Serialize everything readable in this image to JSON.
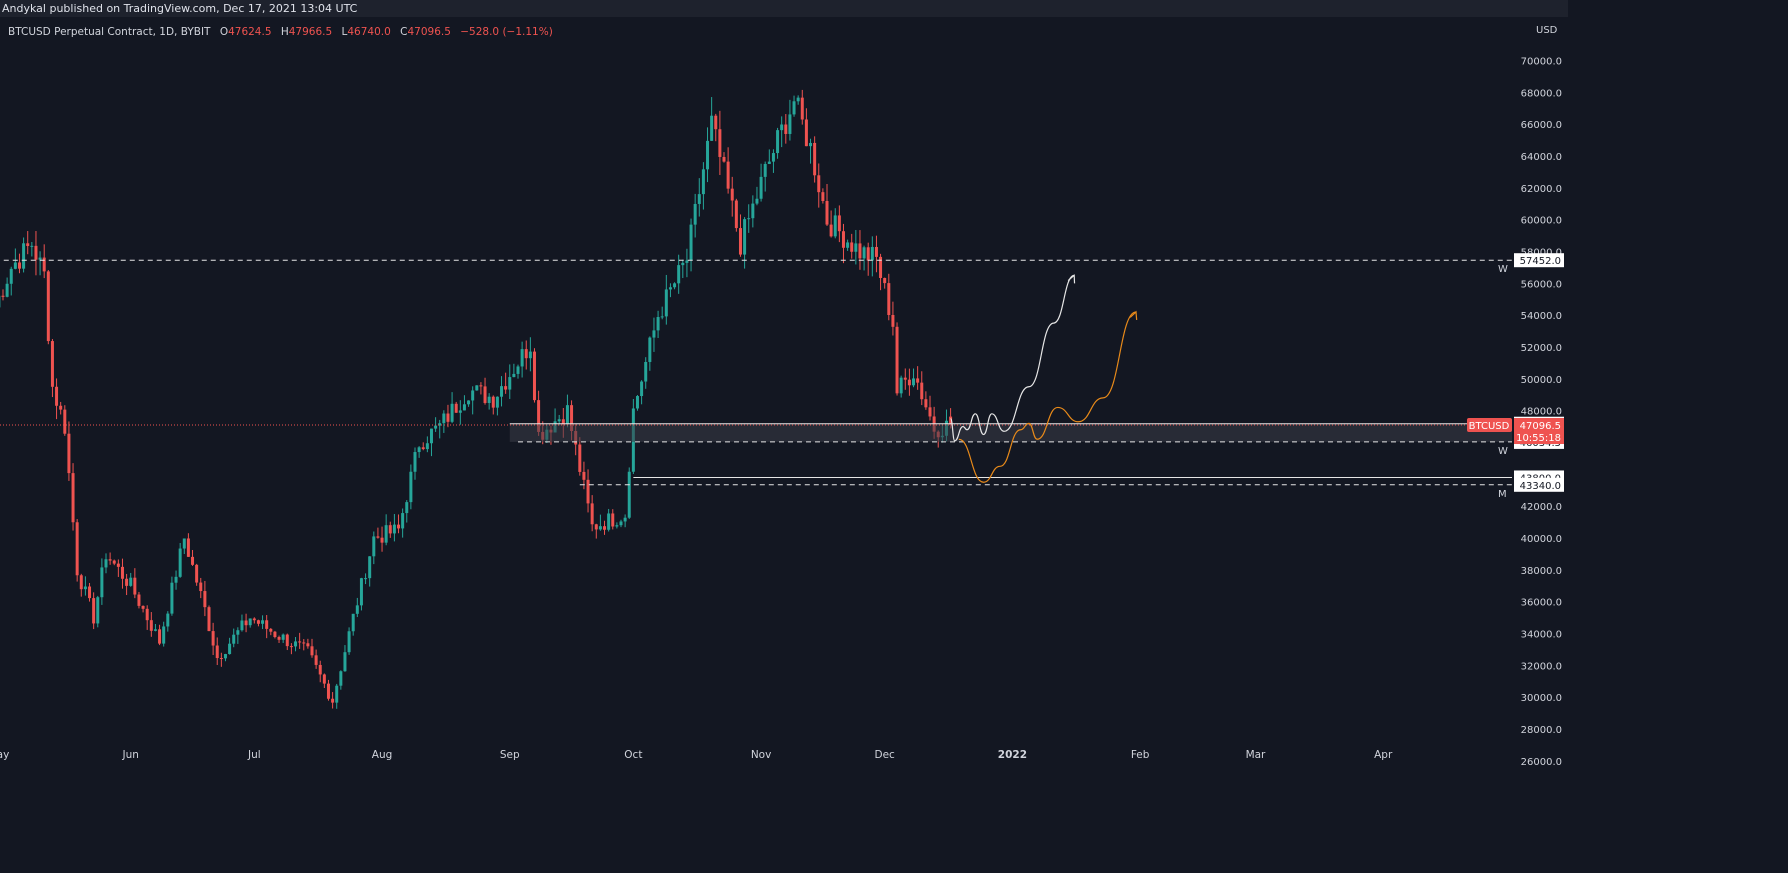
{
  "publisher_bar": "Andykal published on TradingView.com, Dec 17, 2021 13:04 UTC",
  "legend": {
    "symbol": "BTCUSD Perpetual Contract, 1D, BYBIT",
    "open_label": "O",
    "open": "47624.5",
    "high_label": "H",
    "high": "47966.5",
    "low_label": "L",
    "low": "46740.0",
    "close_label": "C",
    "close": "47096.5",
    "change": "−528.0 (−1.11%)"
  },
  "colors": {
    "background": "#131722",
    "up": "#26a69a",
    "down": "#ef5350",
    "grid_text": "#d1d4dc",
    "projection_white": "#e6e6e6",
    "projection_orange": "#e88a1a"
  },
  "chart_data": {
    "type": "candlestick",
    "title": "BTCUSD Perpetual Contract, 1D, BYBIT",
    "currency": "USD",
    "ylim": [
      26000,
      70000
    ],
    "y_ticks": [
      "26000.0",
      "28000.0",
      "30000.0",
      "32000.0",
      "34000.0",
      "36000.0",
      "38000.0",
      "40000.0",
      "42000.0",
      "44000.0",
      "46000.0",
      "48000.0",
      "50000.0",
      "52000.0",
      "54000.0",
      "56000.0",
      "58000.0",
      "60000.0",
      "62000.0",
      "64000.0",
      "66000.0",
      "68000.0",
      "70000.0"
    ],
    "x_ticks": [
      {
        "label": "ay",
        "date": "2021-05-01"
      },
      {
        "label": "Jun",
        "date": "2021-06-01"
      },
      {
        "label": "Jul",
        "date": "2021-07-01"
      },
      {
        "label": "Aug",
        "date": "2021-08-01"
      },
      {
        "label": "Sep",
        "date": "2021-09-01"
      },
      {
        "label": "Oct",
        "date": "2021-10-01"
      },
      {
        "label": "Nov",
        "date": "2021-11-01"
      },
      {
        "label": "Dec",
        "date": "2021-12-01"
      },
      {
        "label": "2022",
        "date": "2022-01-01"
      },
      {
        "label": "Feb",
        "date": "2022-02-01"
      },
      {
        "label": "Mar",
        "date": "2022-03-01"
      },
      {
        "label": "Apr",
        "date": "2022-04-01"
      }
    ],
    "anchors": [
      {
        "date": "2021-04-29",
        "close": 54500
      },
      {
        "date": "2021-05-03",
        "close": 57000
      },
      {
        "date": "2021-05-08",
        "close": 58500
      },
      {
        "date": "2021-05-11",
        "close": 56500
      },
      {
        "date": "2021-05-13",
        "close": 49500
      },
      {
        "date": "2021-05-16",
        "close": 47000
      },
      {
        "date": "2021-05-19",
        "close": 38000
      },
      {
        "date": "2021-05-23",
        "close": 35000
      },
      {
        "date": "2021-05-26",
        "close": 39000
      },
      {
        "date": "2021-06-01",
        "close": 37000
      },
      {
        "date": "2021-06-08",
        "close": 33500
      },
      {
        "date": "2021-06-14",
        "close": 40000
      },
      {
        "date": "2021-06-19",
        "close": 35500
      },
      {
        "date": "2021-06-22",
        "close": 32500
      },
      {
        "date": "2021-06-30",
        "close": 35000
      },
      {
        "date": "2021-07-06",
        "close": 34000
      },
      {
        "date": "2021-07-14",
        "close": 32800
      },
      {
        "date": "2021-07-20",
        "close": 29800
      },
      {
        "date": "2021-07-25",
        "close": 35000
      },
      {
        "date": "2021-07-30",
        "close": 40000
      },
      {
        "date": "2021-08-05",
        "close": 40500
      },
      {
        "date": "2021-08-10",
        "close": 46000
      },
      {
        "date": "2021-08-15",
        "close": 47000
      },
      {
        "date": "2021-08-22",
        "close": 49300
      },
      {
        "date": "2021-08-28",
        "close": 48800
      },
      {
        "date": "2021-09-06",
        "close": 52200
      },
      {
        "date": "2021-09-08",
        "close": 46500
      },
      {
        "date": "2021-09-15",
        "close": 48000
      },
      {
        "date": "2021-09-21",
        "close": 40700
      },
      {
        "date": "2021-09-29",
        "close": 41500
      },
      {
        "date": "2021-10-01",
        "close": 48000
      },
      {
        "date": "2021-10-07",
        "close": 54000
      },
      {
        "date": "2021-10-14",
        "close": 57500
      },
      {
        "date": "2021-10-20",
        "close": 66000
      },
      {
        "date": "2021-10-27",
        "close": 58500
      },
      {
        "date": "2021-11-02",
        "close": 63000
      },
      {
        "date": "2021-11-09",
        "close": 67500
      },
      {
        "date": "2021-11-13",
        "close": 64500
      },
      {
        "date": "2021-11-17",
        "close": 60000
      },
      {
        "date": "2021-11-25",
        "close": 58000
      },
      {
        "date": "2021-11-29",
        "close": 57500
      },
      {
        "date": "2021-12-03",
        "close": 53500
      },
      {
        "date": "2021-12-04",
        "close": 49200
      },
      {
        "date": "2021-12-08",
        "close": 50500
      },
      {
        "date": "2021-12-13",
        "close": 46900
      },
      {
        "date": "2021-12-17",
        "close": 47096.5
      }
    ],
    "levels": [
      {
        "price": 57452.0,
        "label": "57452.0",
        "style": "dashed",
        "from": "2021-04-29",
        "tag": "W"
      },
      {
        "price": 47177.0,
        "label": "47177.0",
        "style": "solid",
        "from": "2021-09-01"
      },
      {
        "price": 46034.5,
        "label": "46034.5",
        "style": "dashed",
        "from": "2021-09-03",
        "tag": "W"
      },
      {
        "price": 43800.0,
        "label": "43800.0",
        "style": "solid",
        "from": "2021-10-01"
      },
      {
        "price": 43340.0,
        "label": "43340.0",
        "style": "dashed",
        "from": "2021-09-18",
        "tag": "M"
      }
    ],
    "zone": {
      "top": 47177.0,
      "bottom": 46034.5
    },
    "last_price": {
      "symbol": "BTCUSD",
      "price": "47096.5",
      "countdown": "10:55:18",
      "value": 47096.5
    },
    "projection_white": [
      {
        "date": "2021-12-17",
        "price": 47500
      },
      {
        "date": "2021-12-18",
        "price": 46100
      },
      {
        "date": "2021-12-20",
        "price": 47000
      },
      {
        "date": "2021-12-21",
        "price": 46800
      },
      {
        "date": "2021-12-23",
        "price": 47800
      },
      {
        "date": "2021-12-25",
        "price": 46500
      },
      {
        "date": "2021-12-27",
        "price": 47800
      },
      {
        "date": "2021-12-30",
        "price": 46700
      },
      {
        "date": "2022-01-05",
        "price": 49500
      },
      {
        "date": "2022-01-11",
        "price": 53500
      },
      {
        "date": "2022-01-16",
        "price": 56500
      }
    ],
    "projection_orange": [
      {
        "date": "2021-12-19",
        "price": 46200
      },
      {
        "date": "2021-12-25",
        "price": 43500
      },
      {
        "date": "2021-12-29",
        "price": 44500
      },
      {
        "date": "2022-01-03",
        "price": 46800
      },
      {
        "date": "2022-01-05",
        "price": 47200
      },
      {
        "date": "2022-01-07",
        "price": 46200
      },
      {
        "date": "2022-01-12",
        "price": 48200
      },
      {
        "date": "2022-01-17",
        "price": 47300
      },
      {
        "date": "2022-01-23",
        "price": 48800
      },
      {
        "date": "2022-01-31",
        "price": 54200
      }
    ]
  }
}
